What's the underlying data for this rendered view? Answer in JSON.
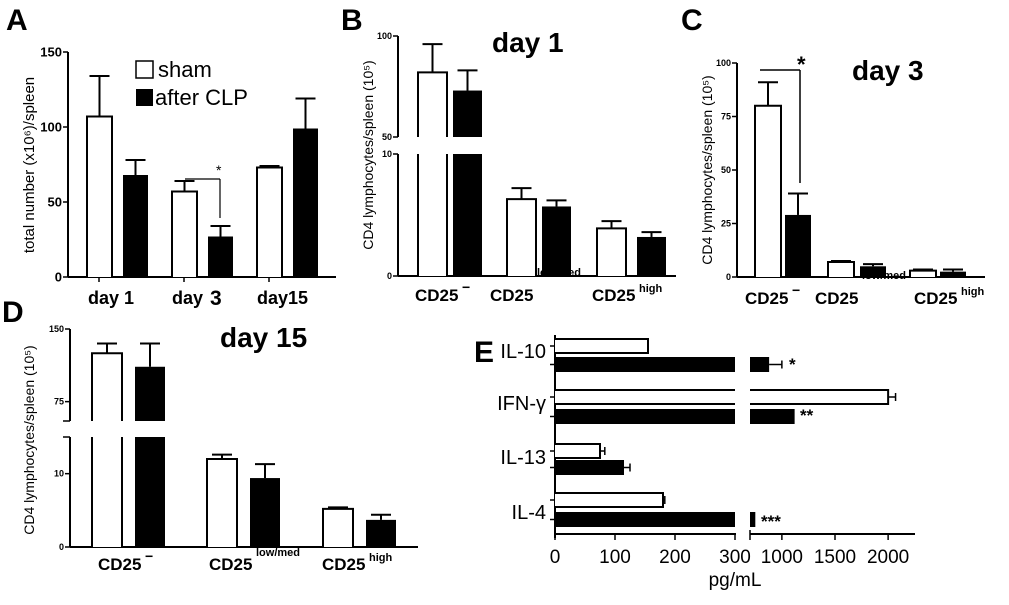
{
  "colors": {
    "sham": "#ffffff",
    "after_clp": "#000000",
    "stroke": "#000000"
  },
  "chart_data": [
    {
      "panel": "A",
      "type": "bar",
      "title": "",
      "ylabel": "total number (x10⁶)/spleen",
      "xlabel": "",
      "ylim": [
        0,
        150
      ],
      "yticks": [
        "0",
        "50",
        "100",
        "150"
      ],
      "categories": [
        "day 1",
        "day 3",
        "day 15"
      ],
      "category_labels": [
        "day 1",
        "day",
        "day15"
      ],
      "category_label_suffix": [
        "",
        "3",
        ""
      ],
      "legend": {
        "placement": "top-left",
        "entries": [
          "sham",
          "after CLP"
        ]
      },
      "series": [
        {
          "name": "sham",
          "values": [
            107,
            57,
            73
          ],
          "errors_upper": [
            134,
            64,
            74
          ]
        },
        {
          "name": "after CLP",
          "values": [
            68,
            27,
            99
          ],
          "errors_upper": [
            78,
            34,
            119
          ]
        }
      ],
      "annotations": [
        {
          "text": "*",
          "between": "day 3 sham vs after CLP"
        }
      ]
    },
    {
      "panel": "B",
      "type": "bar",
      "title": "day 1",
      "ylabel": "CD4 lymphocytes/spleen (10⁵)",
      "axis_break": [
        10,
        50
      ],
      "ylim": [
        0,
        100
      ],
      "yticks": [
        "0",
        "10",
        "50",
        "100"
      ],
      "categories": [
        "CD25⁻",
        "CD25 low/med",
        "CD25 high"
      ],
      "series": [
        {
          "name": "sham",
          "values": [
            82,
            6.3,
            3.9
          ],
          "errors_upper": [
            96,
            7.2,
            4.5
          ]
        },
        {
          "name": "after CLP",
          "values": [
            73,
            5.7,
            3.2
          ],
          "errors_upper": [
            83,
            6.2,
            3.6
          ]
        }
      ]
    },
    {
      "panel": "C",
      "type": "bar",
      "title": "day 3",
      "ylabel": "CD4 lymphocytes/spleen (10⁵)",
      "ylim": [
        0,
        100
      ],
      "yticks": [
        "0",
        "25",
        "50",
        "75",
        "100"
      ],
      "categories": [
        "CD25⁻",
        "CD25 low/med",
        "CD25 high"
      ],
      "series": [
        {
          "name": "sham",
          "values": [
            80,
            7,
            3
          ],
          "errors_upper": [
            91,
            7.5,
            3.5
          ]
        },
        {
          "name": "after CLP",
          "values": [
            29,
            5,
            2.5
          ],
          "errors_upper": [
            39,
            6,
            3.5
          ]
        }
      ],
      "annotations": [
        {
          "text": "*",
          "between": "CD25⁻ sham vs after CLP"
        }
      ]
    },
    {
      "panel": "D",
      "type": "bar",
      "title": "day 15",
      "ylabel": "CD4 lymphocytes/spleen (10⁵)",
      "axis_break": [
        15,
        55
      ],
      "ylim": [
        0,
        150
      ],
      "yticks": [
        "0",
        "10",
        "75",
        "150"
      ],
      "categories": [
        "CD25⁻",
        "CD25 low/med",
        "CD25 high"
      ],
      "series": [
        {
          "name": "sham",
          "values": [
            125,
            12.0,
            5.2
          ],
          "errors_upper": [
            135,
            12.6,
            5.4
          ]
        },
        {
          "name": "after CLP",
          "values": [
            111,
            9.4,
            3.7
          ],
          "errors_upper": [
            135,
            11.3,
            4.4
          ]
        }
      ]
    },
    {
      "panel": "E",
      "type": "bar",
      "orientation": "horizontal",
      "title": "",
      "xlabel": "pg/mL",
      "axis_break": [
        300,
        700
      ],
      "xlim": [
        0,
        2300
      ],
      "xticks": [
        "0",
        "100",
        "200",
        "300",
        "1000",
        "1500",
        "2000"
      ],
      "categories": [
        "IL-10",
        "IFN-γ",
        "IL-13",
        "IL-4"
      ],
      "series": [
        {
          "name": "sham",
          "values": [
            155,
            2000,
            75,
            180
          ],
          "errors_upper": [
            155,
            2070,
            83,
            183
          ]
        },
        {
          "name": "after CLP",
          "values": [
            880,
            1120,
            115,
            750
          ],
          "errors_upper": [
            1000,
            1120,
            125,
            750
          ]
        }
      ],
      "annotations": [
        {
          "text": "*",
          "category": "IL-10"
        },
        {
          "text": "**",
          "category": "IFN-γ"
        },
        {
          "text": "***",
          "category": "IL-4"
        }
      ]
    }
  ],
  "panel_letters": [
    "A",
    "B",
    "C",
    "D",
    "E"
  ],
  "superscripts": {
    "neg": "−",
    "lowmed": "low/med",
    "high": "high",
    "base": "CD25"
  }
}
